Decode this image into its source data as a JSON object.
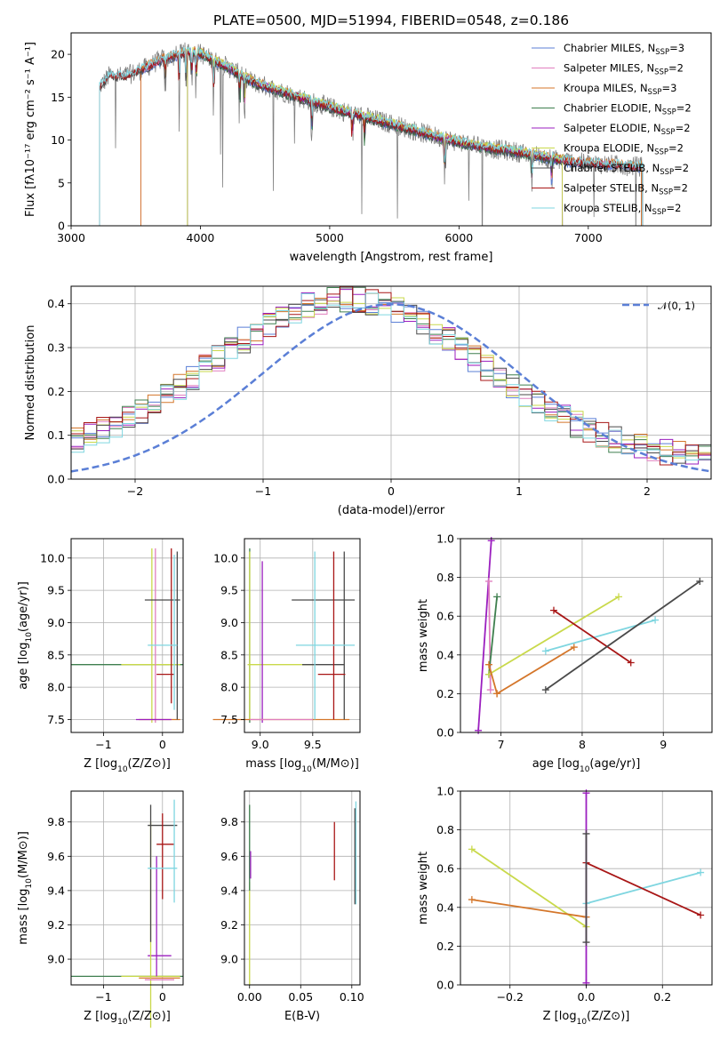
{
  "colors": {
    "chabrier_miles": "#5b7fd6",
    "salpeter_miles": "#e07fbf",
    "kroupa_miles": "#d4762a",
    "chabrier_elodie": "#3f7f4f",
    "salpeter_elodie": "#9b1fbf",
    "kroupa_elodie": "#c9d94b",
    "chabrier_stelib": "#4a4a4a",
    "salpeter_stelib": "#a81616",
    "kroupa_stelib": "#7fd6e0",
    "normal": "#5b7fd6",
    "observed": "#808080"
  },
  "chart_data": [
    {
      "id": "spectrum",
      "type": "line",
      "title": "PLATE=0500, MJD=51994, FIBERID=0548, z=0.186",
      "xlabel": "wavelength [Angstrom, rest frame]",
      "ylabel": "Flux [fλ10⁻¹⁷ erg cm⁻² s⁻¹ A⁻¹]",
      "xlim": [
        3000,
        7950
      ],
      "ylim": [
        0,
        22.5
      ],
      "xticks": [
        3000,
        4000,
        5000,
        6000,
        7000
      ],
      "yticks": [
        0,
        5,
        10,
        15,
        20
      ],
      "grid": false,
      "legend_position": "right",
      "continuum": {
        "x": [
          3220,
          3300,
          3400,
          3500,
          3600,
          3700,
          3800,
          3900,
          4000,
          4100,
          4200,
          4300,
          4400,
          4500,
          4700,
          4900,
          5100,
          5300,
          5500,
          5700,
          5900,
          6100,
          6300,
          6500,
          6700,
          6900,
          7100,
          7300,
          7420
        ],
        "y": [
          16.2,
          17.6,
          17.4,
          17.9,
          18.6,
          19.4,
          19.8,
          20.3,
          20.1,
          19.3,
          18.6,
          17.7,
          16.8,
          16.3,
          15.3,
          14.3,
          13.4,
          12.6,
          11.8,
          10.9,
          10.1,
          9.4,
          8.9,
          8.5,
          7.9,
          7.4,
          7.2,
          7.0,
          6.9
        ]
      },
      "series": [
        {
          "name": "Chabrier MILES, N",
          "sub": "SSP",
          "tail": "=3",
          "key": "chabrier_miles"
        },
        {
          "name": "Salpeter MILES, N",
          "sub": "SSP",
          "tail": "=2",
          "key": "salpeter_miles"
        },
        {
          "name": "Kroupa MILES, N",
          "sub": "SSP",
          "tail": "=3",
          "key": "kroupa_miles"
        },
        {
          "name": "Chabrier ELODIE, N",
          "sub": "SSP",
          "tail": "=2",
          "key": "chabrier_elodie"
        },
        {
          "name": "Salpeter ELODIE, N",
          "sub": "SSP",
          "tail": "=2",
          "key": "salpeter_elodie"
        },
        {
          "name": "Kroupa ELODIE, N",
          "sub": "SSP",
          "tail": "=2",
          "key": "kroupa_elodie"
        },
        {
          "name": "Chabrier STELIB, N",
          "sub": "SSP",
          "tail": "=2",
          "key": "chabrier_stelib"
        },
        {
          "name": "Salpeter STELIB, N",
          "sub": "SSP",
          "tail": "=2",
          "key": "salpeter_stelib"
        },
        {
          "name": "Kroupa STELIB, N",
          "sub": "SSP",
          "tail": "=2",
          "key": "kroupa_stelib"
        }
      ],
      "model_ranges": {
        "chabrier_miles": [
          3540,
          7410
        ],
        "salpeter_miles": [
          3540,
          7410
        ],
        "kroupa_miles": [
          3540,
          7410
        ],
        "chabrier_elodie": [
          3900,
          6800
        ],
        "salpeter_elodie": [
          3900,
          6800
        ],
        "kroupa_elodie": [
          3900,
          6800
        ],
        "chabrier_stelib": [
          3220,
          7420
        ],
        "salpeter_stelib": [
          3220,
          7420
        ],
        "kroupa_stelib": [
          3220,
          7420
        ]
      }
    },
    {
      "id": "residuals",
      "type": "line",
      "xlabel": "(data-model)/error",
      "ylabel": "Normed distribution",
      "xlim": [
        -2.5,
        2.5
      ],
      "ylim": [
        0,
        0.44
      ],
      "xticks": [
        -2,
        -1,
        0,
        1,
        2
      ],
      "yticks": [
        0.0,
        0.1,
        0.2,
        0.3,
        0.4
      ],
      "grid": true,
      "legend_position": "top-right",
      "legend_label": "𝒩(0, 1)",
      "bin_width": 0.1
    },
    {
      "id": "z_age",
      "type": "scatter",
      "xlabel": "Z [log10(Z/Z⊙)]",
      "ylabel": "age  [log10(age/yr)]",
      "xlim": [
        -1.55,
        0.35
      ],
      "ylim": [
        7.3,
        10.3
      ],
      "xticks": [
        -1,
        0
      ],
      "yticks": [
        7.5,
        8.0,
        8.5,
        9.0,
        9.5,
        10.0
      ],
      "grid": true,
      "errorbars": [
        {
          "key": "chabrier_elodie",
          "x": -0.6,
          "y": 8.35,
          "xerr": 0.95,
          "yerr": 0
        },
        {
          "key": "kroupa_elodie",
          "x": -0.2,
          "y": 8.35,
          "xerr": 0.5,
          "yerr": 0
        },
        {
          "key": "kroupa_elodie",
          "x": -0.18,
          "y": 8.8,
          "xerr": 0,
          "yerr": 1.35
        },
        {
          "key": "salpeter_miles",
          "x": -0.12,
          "y": 8.8,
          "xerr": 0,
          "yerr": 1.35
        },
        {
          "key": "kroupa_miles",
          "x": -0.05,
          "y": 7.5,
          "xerr": 0.35,
          "yerr": 0
        },
        {
          "key": "salpeter_stelib",
          "x": 0.15,
          "y": 8.95,
          "xerr": 0,
          "yerr": 1.2
        },
        {
          "key": "salpeter_stelib",
          "x": 0.05,
          "y": 8.2,
          "xerr": 0.15,
          "yerr": 0
        },
        {
          "key": "chabrier_stelib",
          "x": 0.0,
          "y": 9.35,
          "xerr": 0.3,
          "yerr": 0
        },
        {
          "key": "chabrier_stelib",
          "x": 0.25,
          "y": 8.8,
          "xerr": 0,
          "yerr": 1.3
        },
        {
          "key": "kroupa_stelib",
          "x": 0.0,
          "y": 8.65,
          "xerr": 0.25,
          "yerr": 0
        },
        {
          "key": "kroupa_stelib",
          "x": 0.2,
          "y": 8.85,
          "xerr": 0,
          "yerr": 1.2
        },
        {
          "key": "salpeter_elodie",
          "x": -0.15,
          "y": 7.5,
          "xerr": 0.3,
          "yerr": 0
        }
      ]
    },
    {
      "id": "mass_age",
      "type": "scatter",
      "xlabel": "mass [log10(M/M⊙)]",
      "ylabel": "",
      "xlim": [
        8.85,
        9.95
      ],
      "ylim": [
        7.3,
        10.3
      ],
      "xticks": [
        9.0,
        9.5
      ],
      "yticks": [
        7.5,
        8.0,
        8.5,
        9.0,
        9.5,
        10.0
      ],
      "grid": true,
      "errorbars": [
        {
          "key": "chabrier_elodie",
          "x": 8.9,
          "y": 8.8,
          "xerr": 0,
          "yerr": 1.35
        },
        {
          "key": "kroupa_elodie",
          "x": 9.2,
          "y": 8.35,
          "xerr": 0.32,
          "yerr": 0
        },
        {
          "key": "kroupa_elodie",
          "x": 8.9,
          "y": 8.8,
          "xerr": 0,
          "yerr": 1.3
        },
        {
          "key": "salpeter_elodie",
          "x": 9.02,
          "y": 8.7,
          "xerr": 0,
          "yerr": 1.25
        },
        {
          "key": "kroupa_miles",
          "x": 9.2,
          "y": 7.5,
          "xerr": 0.65,
          "yerr": 0
        },
        {
          "key": "salpeter_miles",
          "x": 9.2,
          "y": 7.5,
          "xerr": 0.3,
          "yerr": 0
        },
        {
          "key": "chabrier_stelib",
          "x": 9.6,
          "y": 9.35,
          "xerr": 0.3,
          "yerr": 0
        },
        {
          "key": "chabrier_stelib",
          "x": 9.6,
          "y": 8.35,
          "xerr": 0.2,
          "yerr": 0
        },
        {
          "key": "chabrier_stelib",
          "x": 9.8,
          "y": 8.8,
          "xerr": 0,
          "yerr": 1.3
        },
        {
          "key": "salpeter_stelib",
          "x": 9.68,
          "y": 8.2,
          "xerr": 0.13,
          "yerr": 0
        },
        {
          "key": "salpeter_stelib",
          "x": 9.7,
          "y": 8.8,
          "xerr": 0,
          "yerr": 1.3
        },
        {
          "key": "kroupa_stelib",
          "x": 9.62,
          "y": 8.65,
          "xerr": 0.28,
          "yerr": 0
        },
        {
          "key": "kroupa_stelib",
          "x": 9.52,
          "y": 8.8,
          "xerr": 0,
          "yerr": 1.3
        }
      ]
    },
    {
      "id": "age_weight",
      "type": "line",
      "xlabel": "age  [log10(age/yr)]",
      "ylabel": "mass weight",
      "xlim": [
        6.5,
        9.6
      ],
      "ylim": [
        0,
        1.0
      ],
      "xticks": [
        7,
        8,
        9
      ],
      "yticks": [
        0.0,
        0.2,
        0.4,
        0.6,
        0.8,
        1.0
      ],
      "grid": true,
      "lines": [
        {
          "key": "salpeter_elodie",
          "x": [
            6.72,
            6.88
          ],
          "y": [
            0.01,
            0.99
          ]
        },
        {
          "key": "salpeter_miles",
          "x": [
            6.85,
            6.87
          ],
          "y": [
            0.78,
            0.22
          ]
        },
        {
          "key": "chabrier_elodie",
          "x": [
            6.85,
            6.95
          ],
          "y": [
            0.3,
            0.7
          ]
        },
        {
          "key": "kroupa_miles",
          "x": [
            6.95,
            7.9
          ],
          "y": [
            0.2,
            0.44
          ]
        },
        {
          "key": "kroupa_elodie",
          "x": [
            6.85,
            8.45
          ],
          "y": [
            0.3,
            0.7
          ]
        },
        {
          "key": "kroupa_stelib",
          "x": [
            7.55,
            8.9
          ],
          "y": [
            0.42,
            0.58
          ]
        },
        {
          "key": "salpeter_stelib",
          "x": [
            7.65,
            8.6
          ],
          "y": [
            0.63,
            0.36
          ]
        },
        {
          "key": "chabrier_stelib",
          "x": [
            7.55,
            9.45
          ],
          "y": [
            0.22,
            0.78
          ]
        },
        {
          "key": "kroupa_miles",
          "x": [
            6.85,
            6.95
          ],
          "y": [
            0.35,
            0.2
          ]
        }
      ]
    },
    {
      "id": "z_mass",
      "type": "scatter",
      "xlabel": "Z [log10(Z/Z⊙)]",
      "ylabel": "mass [log10(M/M⊙)]",
      "xlim": [
        -1.55,
        0.35
      ],
      "ylim": [
        8.85,
        9.98
      ],
      "xticks": [
        -1,
        0
      ],
      "yticks": [
        9.0,
        9.2,
        9.4,
        9.6,
        9.8
      ],
      "grid": true,
      "errorbars": [
        {
          "key": "chabrier_elodie",
          "x": -0.6,
          "y": 8.9,
          "xerr": 0.95,
          "yerr": 0
        },
        {
          "key": "kroupa_elodie",
          "x": -0.2,
          "y": 8.9,
          "xerr": 0.5,
          "yerr": 0
        },
        {
          "key": "kroupa_miles",
          "x": -0.05,
          "y": 8.89,
          "xerr": 0.35,
          "yerr": 0
        },
        {
          "key": "salpeter_elodie",
          "x": -0.05,
          "y": 9.02,
          "xerr": 0.2,
          "yerr": 0
        },
        {
          "key": "salpeter_elodie",
          "x": -0.1,
          "y": 9.25,
          "xerr": 0,
          "yerr": 0.35
        },
        {
          "key": "kroupa_elodie",
          "x": -0.2,
          "y": 9.2,
          "xerr": 0,
          "yerr": 0.6
        },
        {
          "key": "chabrier_stelib",
          "x": 0.0,
          "y": 9.78,
          "xerr": 0.25,
          "yerr": 0
        },
        {
          "key": "chabrier_stelib",
          "x": -0.2,
          "y": 9.5,
          "xerr": 0,
          "yerr": 0.4
        },
        {
          "key": "salpeter_stelib",
          "x": 0.05,
          "y": 9.67,
          "xerr": 0.15,
          "yerr": 0
        },
        {
          "key": "salpeter_stelib",
          "x": 0.0,
          "y": 9.6,
          "xerr": 0,
          "yerr": 0.25
        },
        {
          "key": "kroupa_stelib",
          "x": 0.0,
          "y": 9.53,
          "xerr": 0.25,
          "yerr": 0
        },
        {
          "key": "kroupa_stelib",
          "x": 0.2,
          "y": 9.63,
          "xerr": 0,
          "yerr": 0.3
        },
        {
          "key": "salpeter_miles",
          "x": -0.05,
          "y": 8.88,
          "xerr": 0.25,
          "yerr": 0
        }
      ]
    },
    {
      "id": "ebv_mass",
      "type": "scatter",
      "xlabel": "E(B-V)",
      "ylabel": "",
      "xlim": [
        -0.005,
        0.108
      ],
      "ylim": [
        8.85,
        9.98
      ],
      "xticks": [
        0.0,
        0.05,
        0.1
      ],
      "xticklabels": [
        "0.00",
        "0.05",
        "0.10"
      ],
      "yticks": [
        9.0,
        9.2,
        9.4,
        9.6,
        9.8
      ],
      "grid": true,
      "errorbars": [
        {
          "key": "kroupa_elodie",
          "x": 0.0,
          "y": 9.15,
          "xerr": 0,
          "yerr": 0.3
        },
        {
          "key": "chabrier_elodie",
          "x": 0.0,
          "y": 9.65,
          "xerr": 0,
          "yerr": 0.25
        },
        {
          "key": "salpeter_elodie",
          "x": 0.001,
          "y": 9.55,
          "xerr": 0,
          "yerr": 0.08
        },
        {
          "key": "salpeter_stelib",
          "x": 0.083,
          "y": 9.63,
          "xerr": 0,
          "yerr": 0.17
        },
        {
          "key": "kroupa_stelib",
          "x": 0.104,
          "y": 9.62,
          "xerr": 0,
          "yerr": 0.3
        },
        {
          "key": "chabrier_stelib",
          "x": 0.103,
          "y": 9.6,
          "xerr": 0,
          "yerr": 0.28
        }
      ]
    },
    {
      "id": "z_weight",
      "type": "line",
      "xlabel": "Z [log10(Z/Z⊙)]",
      "ylabel": "mass weight",
      "xlim": [
        -0.33,
        0.33
      ],
      "ylim": [
        0,
        1.0
      ],
      "xticks": [
        -0.2,
        0.0,
        0.2
      ],
      "xticklabels": [
        "−0.2",
        "0.0",
        "0.2"
      ],
      "yticks": [
        0.0,
        0.2,
        0.4,
        0.6,
        0.8,
        1.0
      ],
      "grid": true,
      "lines": [
        {
          "key": "kroupa_elodie",
          "x": [
            -0.3,
            0.0
          ],
          "y": [
            0.7,
            0.3
          ]
        },
        {
          "key": "kroupa_miles",
          "x": [
            -0.3,
            0.0
          ],
          "y": [
            0.44,
            0.35
          ]
        },
        {
          "key": "kroupa_stelib",
          "x": [
            0.0,
            0.3
          ],
          "y": [
            0.42,
            0.58
          ]
        },
        {
          "key": "salpeter_stelib",
          "x": [
            0.0,
            0.3
          ],
          "y": [
            0.63,
            0.36
          ]
        },
        {
          "key": "salpeter_elodie",
          "x": [
            0.0,
            0.0
          ],
          "y": [
            0.01,
            0.99
          ]
        },
        {
          "key": "chabrier_stelib",
          "x": [
            0.0,
            0.0
          ],
          "y": [
            0.22,
            0.78
          ]
        }
      ]
    }
  ]
}
